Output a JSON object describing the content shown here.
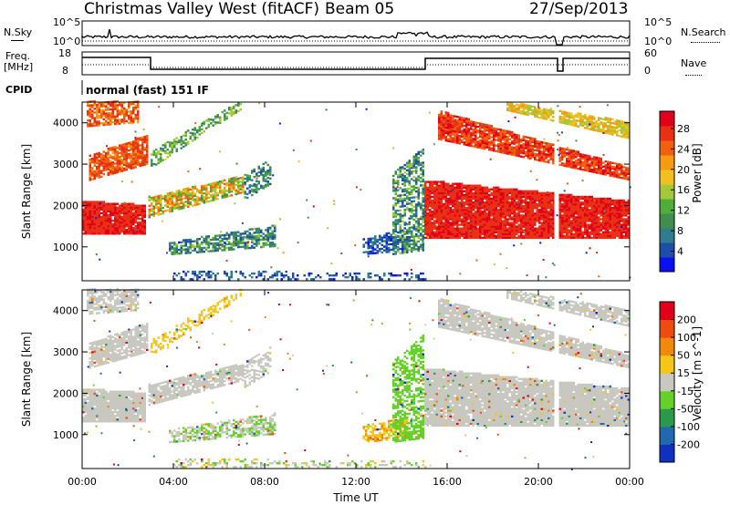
{
  "header": {
    "station": "Christmas Valley West (fitACF)",
    "beam": "Beam 05",
    "date": "27/Sep/2013"
  },
  "panels": {
    "nsky_label": "N.Sky",
    "nsky_ticks": [
      "10^5",
      "10^0"
    ],
    "nsearch_label": "N.Search",
    "freq_label_1": "Freq.",
    "freq_label_2": "[MHz]",
    "freq_ticks": [
      "18",
      "8"
    ],
    "nave_ticks": [
      "60",
      "0"
    ],
    "nave_label": "Nave",
    "cpid_label": "CPID",
    "cpid_text": "normal (fast) 151 IF"
  },
  "chart_data": [
    {
      "type": "heatmap",
      "name": "power",
      "ylabel": "Slant Range [km]",
      "xlabel": "",
      "ylim": [
        180,
        4500
      ],
      "y_ticks": [
        1000,
        2000,
        3000,
        4000
      ],
      "x_ticks": [
        0,
        4,
        8,
        12,
        16,
        20,
        24
      ],
      "colorbar": {
        "label": "Power [dB]",
        "ticks": [
          4,
          8,
          12,
          16,
          20,
          24,
          28
        ],
        "colors": [
          "#0a10f0",
          "#1f4ea8",
          "#2e7d8f",
          "#3f8e4e",
          "#4fae3a",
          "#a5c83a",
          "#f0c020",
          "#f39c12",
          "#f06010",
          "#e83015",
          "#e0001a"
        ]
      },
      "bands": [
        {
          "t": [
            0.0,
            2.8
          ],
          "r0": [
            1300,
            1300
          ],
          "r1": [
            2100,
            2000
          ],
          "c": [
            0.85,
            1.0
          ],
          "d": 0.95
        },
        {
          "t": [
            0.3,
            2.9
          ],
          "r0": [
            2600,
            3000
          ],
          "r1": [
            3200,
            3700
          ],
          "c": [
            0.72,
            0.95
          ],
          "d": 0.85
        },
        {
          "t": [
            0.2,
            2.5
          ],
          "r0": [
            3900,
            4000
          ],
          "r1": [
            4500,
            4500
          ],
          "c": [
            0.65,
            0.95
          ],
          "d": 0.75
        },
        {
          "t": [
            2.9,
            7.0
          ],
          "r0": [
            1700,
            2300
          ],
          "r1": [
            2200,
            2700
          ],
          "c": [
            0.3,
            0.85
          ],
          "d": 0.8
        },
        {
          "t": [
            3.0,
            6.9
          ],
          "r0": [
            2900,
            4300
          ],
          "r1": [
            3300,
            4500
          ],
          "c": [
            0.2,
            0.55
          ],
          "d": 0.55
        },
        {
          "t": [
            7.0,
            8.2
          ],
          "r0": [
            2100,
            2500
          ],
          "r1": [
            2700,
            3100
          ],
          "c": [
            0.1,
            0.4
          ],
          "d": 0.55
        },
        {
          "t": [
            3.8,
            8.4
          ],
          "r0": [
            800,
            1000
          ],
          "r1": [
            1100,
            1500
          ],
          "c": [
            0.05,
            0.5
          ],
          "d": 0.65
        },
        {
          "t": [
            4.0,
            9.0
          ],
          "r0": [
            200,
            200
          ],
          "r1": [
            400,
            400
          ],
          "c": [
            0.0,
            0.25
          ],
          "d": 0.35
        },
        {
          "t": [
            9.0,
            15.0
          ],
          "r0": [
            200,
            200
          ],
          "r1": [
            350,
            350
          ],
          "c": [
            0.0,
            0.25
          ],
          "d": 0.3
        },
        {
          "t": [
            12.2,
            14.2
          ],
          "r0": [
            800,
            900
          ],
          "r1": [
            1200,
            1400
          ],
          "c": [
            0.0,
            0.25
          ],
          "d": 0.6
        },
        {
          "t": [
            13.5,
            14.9
          ],
          "r0": [
            800,
            900
          ],
          "r1": [
            2700,
            3400
          ],
          "c": [
            0.05,
            0.55
          ],
          "d": 0.6
        },
        {
          "t": [
            14.9,
            24.0
          ],
          "r0": [
            1200,
            1200
          ],
          "r1": [
            2600,
            2100
          ],
          "c": [
            0.85,
            1.0
          ],
          "d": 0.95
        },
        {
          "t": [
            15.5,
            24.0
          ],
          "r0": [
            3600,
            2600
          ],
          "r1": [
            4300,
            2900
          ],
          "c": [
            0.75,
            1.0
          ],
          "d": 0.9
        },
        {
          "t": [
            18.5,
            24.0
          ],
          "r0": [
            4300,
            3600
          ],
          "r1": [
            4500,
            4000
          ],
          "c": [
            0.45,
            0.75
          ],
          "d": 0.8
        }
      ]
    },
    {
      "type": "heatmap",
      "name": "velocity",
      "ylabel": "Slant Range [km]",
      "xlabel": "Time UT",
      "ylim": [
        180,
        4500
      ],
      "y_ticks": [
        1000,
        2000,
        3000,
        4000
      ],
      "x_ticks": [
        0,
        4,
        8,
        12,
        16,
        20,
        24
      ],
      "x_tick_labels": [
        "00:00",
        "04:00",
        "08:00",
        "12:00",
        "16:00",
        "20:00",
        "00:00"
      ],
      "colorbar": {
        "label": "Velocity [m s^-1]",
        "ticks": [
          "200",
          "100",
          "50",
          "15",
          "-15",
          "-50",
          "-100",
          "-200"
        ],
        "colors": [
          "#1030c0",
          "#2068b0",
          "#2a9a4a",
          "#66d02a",
          "#c8c8c0",
          "#f5c518",
          "#f08a0a",
          "#ef4b10",
          "#e0001a"
        ]
      },
      "bands": [
        {
          "t": [
            0.0,
            2.8
          ],
          "r0": [
            1300,
            1300
          ],
          "r1": [
            2100,
            2000
          ],
          "c": [
            0.5,
            0.5
          ],
          "d": 0.95
        },
        {
          "t": [
            0.3,
            2.9
          ],
          "r0": [
            2600,
            3000
          ],
          "r1": [
            3200,
            3700
          ],
          "c": [
            0.5,
            0.5
          ],
          "d": 0.85
        },
        {
          "t": [
            0.2,
            2.5
          ],
          "r0": [
            3900,
            4000
          ],
          "r1": [
            4500,
            4500
          ],
          "c": [
            0.5,
            0.5
          ],
          "d": 0.75
        },
        {
          "t": [
            2.9,
            7.0
          ],
          "r0": [
            1700,
            2300
          ],
          "r1": [
            2200,
            2700
          ],
          "c": [
            0.5,
            0.5
          ],
          "d": 0.8
        },
        {
          "t": [
            3.0,
            6.9
          ],
          "r0": [
            2900,
            4300
          ],
          "r1": [
            3300,
            4500
          ],
          "c": [
            0.56,
            0.66
          ],
          "d": 0.5
        },
        {
          "t": [
            7.0,
            8.2
          ],
          "r0": [
            2100,
            2500
          ],
          "r1": [
            2700,
            3100
          ],
          "c": [
            0.5,
            0.5
          ],
          "d": 0.5
        },
        {
          "t": [
            3.8,
            8.4
          ],
          "r0": [
            800,
            1000
          ],
          "r1": [
            1100,
            1500
          ],
          "c": [
            0.36,
            0.56
          ],
          "d": 0.6
        },
        {
          "t": [
            4.0,
            9.0
          ],
          "r0": [
            200,
            200
          ],
          "r1": [
            400,
            400
          ],
          "c": [
            0.38,
            0.6
          ],
          "d": 0.35
        },
        {
          "t": [
            9.0,
            15.0
          ],
          "r0": [
            200,
            200
          ],
          "r1": [
            350,
            350
          ],
          "c": [
            0.38,
            0.6
          ],
          "d": 0.3
        },
        {
          "t": [
            12.2,
            14.2
          ],
          "r0": [
            800,
            900
          ],
          "r1": [
            1200,
            1400
          ],
          "c": [
            0.6,
            0.72
          ],
          "d": 0.6
        },
        {
          "t": [
            13.5,
            14.9
          ],
          "r0": [
            800,
            900
          ],
          "r1": [
            2700,
            3400
          ],
          "c": [
            0.34,
            0.42
          ],
          "d": 0.6
        },
        {
          "t": [
            14.9,
            24.0
          ],
          "r0": [
            1200,
            1200
          ],
          "r1": [
            2600,
            2100
          ],
          "c": [
            0.5,
            0.5
          ],
          "d": 0.95
        },
        {
          "t": [
            15.5,
            24.0
          ],
          "r0": [
            3600,
            2600
          ],
          "r1": [
            4300,
            2900
          ],
          "c": [
            0.5,
            0.5
          ],
          "d": 0.9
        },
        {
          "t": [
            18.5,
            24.0
          ],
          "r0": [
            4300,
            3600
          ],
          "r1": [
            4500,
            4000
          ],
          "c": [
            0.5,
            0.5
          ],
          "d": 0.8
        }
      ]
    }
  ]
}
